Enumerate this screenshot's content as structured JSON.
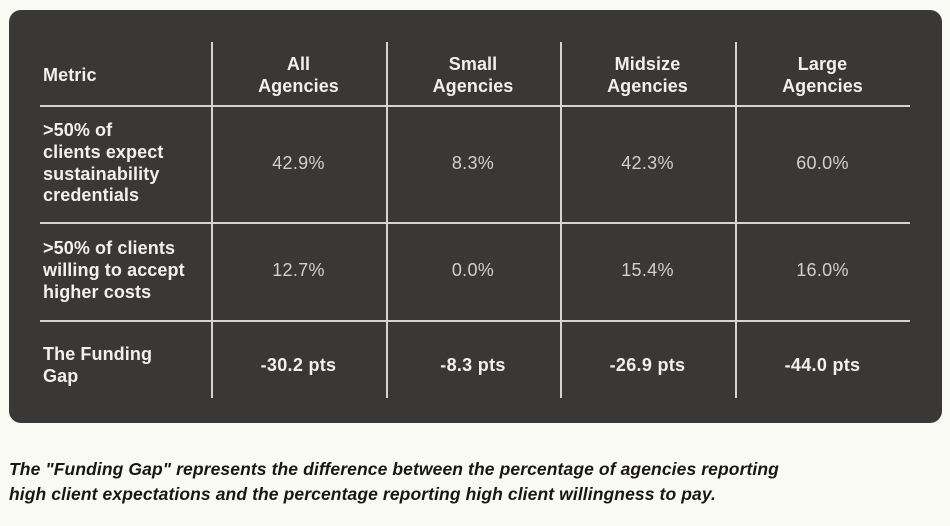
{
  "colors": {
    "page_background": "#fafaf4",
    "card_background": "#3a3837",
    "grid_line": "#d6d4cf",
    "header_text": "#f2f0ec",
    "value_text": "#d2d0cc",
    "footnote_text": "#191715"
  },
  "table": {
    "header": {
      "metric": "Metric",
      "all": "All\nAgencies",
      "small": "Small\nAgencies",
      "midsize": "Midsize\nAgencies",
      "large": "Large\nAgencies"
    },
    "rows": [
      {
        "label": ">50% of\nclients expect\nsustainability\ncredentials",
        "values": [
          "42.9%",
          "8.3%",
          "42.3%",
          "60.0%"
        ]
      },
      {
        "label": ">50% of clients\nwilling to accept\nhigher costs",
        "values": [
          "12.7%",
          "0.0%",
          "15.4%",
          "16.0%"
        ]
      },
      {
        "label": "The Funding\nGap",
        "values": [
          "-30.2 pts",
          "-8.3 pts",
          "-26.9 pts",
          "-44.0 pts"
        ]
      }
    ]
  },
  "footnote": "The \"Funding Gap\" represents the difference between the percentage of agencies reporting\nhigh client expectations and the percentage reporting high client willingness to pay.",
  "chart_data": {
    "type": "table",
    "title": "",
    "columns": [
      "Metric",
      "All Agencies",
      "Small Agencies",
      "Midsize Agencies",
      "Large Agencies"
    ],
    "rows": [
      [
        ">50% of clients expect sustainability credentials",
        "42.9%",
        "8.3%",
        "42.3%",
        "60.0%"
      ],
      [
        ">50% of clients willing to accept higher costs",
        "12.7%",
        "0.0%",
        "15.4%",
        "16.0%"
      ],
      [
        "The Funding Gap",
        "-30.2 pts",
        "-8.3 pts",
        "-26.9 pts",
        "-44.0 pts"
      ]
    ],
    "numeric_rows": [
      {
        "metric": "clients_expect_sustainability_credentials_pct",
        "all": 42.9,
        "small": 8.3,
        "midsize": 42.3,
        "large": 60.0
      },
      {
        "metric": "clients_willing_to_accept_higher_costs_pct",
        "all": 12.7,
        "small": 0.0,
        "midsize": 15.4,
        "large": 16.0
      },
      {
        "metric": "funding_gap_pts",
        "all": -30.2,
        "small": -8.3,
        "midsize": -26.9,
        "large": -44.0
      }
    ],
    "footnote": "The \"Funding Gap\" represents the difference between the percentage of agencies reporting high client expectations and the percentage reporting high client willingness to pay."
  }
}
